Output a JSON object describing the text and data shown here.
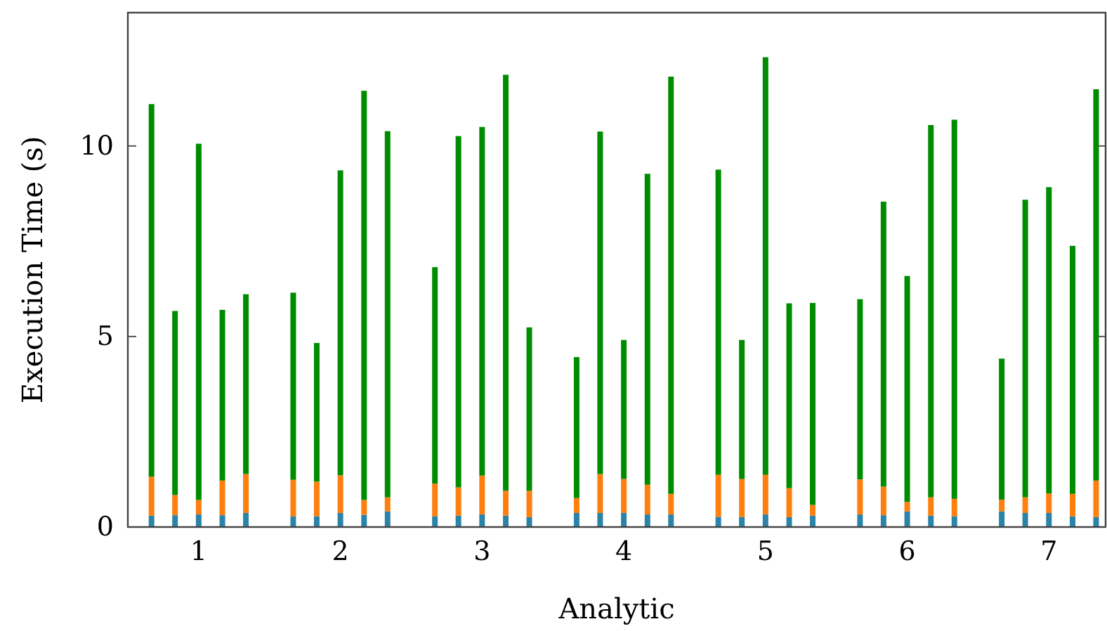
{
  "chart_data": {
    "type": "bar",
    "stacked": true,
    "xlabel": "Analytic",
    "ylabel": "Execution Time (s)",
    "x": [
      0.667,
      0.833,
      1,
      1.167,
      1.333,
      1.667,
      1.833,
      2,
      2.167,
      2.333,
      2.667,
      2.833,
      3,
      3.167,
      3.333,
      3.667,
      3.833,
      4,
      4.167,
      4.333,
      4.667,
      4.833,
      5,
      5.167,
      5.333,
      5.667,
      5.833,
      6,
      6.167,
      6.333,
      6.667,
      6.833,
      7,
      7.167,
      7.333
    ],
    "xlim": [
      0.5,
      7.4
    ],
    "xticks": [
      1,
      2,
      3,
      4,
      5,
      6,
      7
    ],
    "ylim": [
      0,
      13.5
    ],
    "yticks": [
      0,
      5,
      10
    ],
    "grid": false,
    "series": [
      {
        "color": "#2b83a8",
        "values": [
          0.3,
          0.31,
          0.33,
          0.31,
          0.37,
          0.28,
          0.28,
          0.37,
          0.32,
          0.41,
          0.28,
          0.3,
          0.33,
          0.3,
          0.26,
          0.37,
          0.37,
          0.37,
          0.33,
          0.33,
          0.27,
          0.26,
          0.33,
          0.26,
          0.3,
          0.33,
          0.31,
          0.41,
          0.3,
          0.28,
          0.41,
          0.37,
          0.37,
          0.28,
          0.26
        ]
      },
      {
        "color": "#ff7f0e",
        "values": [
          1.02,
          0.53,
          0.38,
          0.91,
          1.02,
          0.96,
          0.91,
          0.99,
          0.39,
          0.37,
          0.86,
          0.74,
          1.02,
          0.65,
          0.69,
          0.39,
          1.02,
          0.89,
          0.78,
          0.54,
          1.1,
          1.0,
          1.04,
          0.76,
          0.28,
          0.92,
          0.75,
          0.25,
          0.48,
          0.46,
          0.31,
          0.41,
          0.51,
          0.59,
          0.96
        ]
      },
      {
        "color": "#008c00",
        "values": [
          9.78,
          4.83,
          9.35,
          4.48,
          4.72,
          4.91,
          3.64,
          8.0,
          10.74,
          9.61,
          5.68,
          9.22,
          9.15,
          10.92,
          4.29,
          3.7,
          8.99,
          3.65,
          8.16,
          10.95,
          8.01,
          3.65,
          10.96,
          4.85,
          5.3,
          4.73,
          7.48,
          5.93,
          9.77,
          9.95,
          3.7,
          7.81,
          8.04,
          6.51,
          10.27
        ]
      }
    ]
  }
}
